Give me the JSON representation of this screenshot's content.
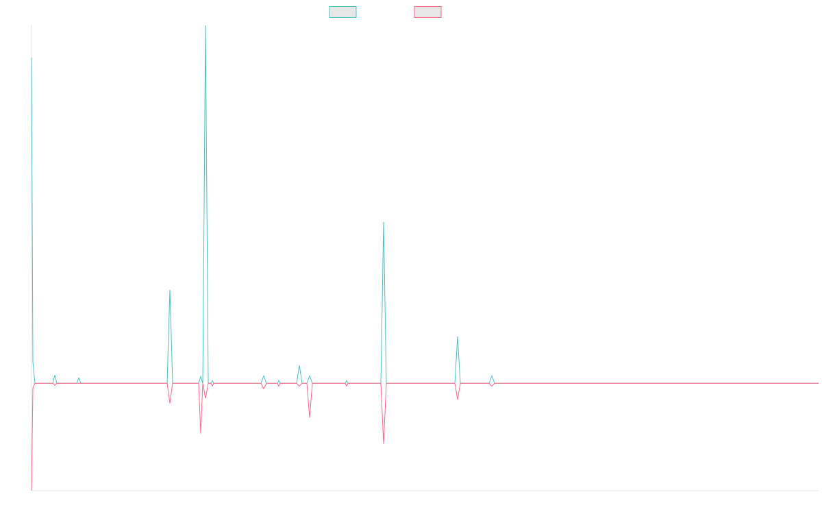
{
  "chart_data": {
    "type": "line",
    "x": [
      0,
      2,
      5,
      31,
      34,
      37,
      66,
      69,
      72,
      198,
      202,
      206,
      244,
      247,
      250,
      254,
      258,
      262,
      264,
      266,
      335,
      339,
      343,
      359,
      361,
      363,
      387,
      391,
      395,
      402,
      406,
      410,
      458,
      460,
      462,
      510,
      514,
      518,
      618,
      622,
      626,
      668,
      672,
      676,
      1149
    ],
    "series": [
      {
        "color": "#4bc0c0",
        "values": [
          91,
          6,
          0,
          0,
          2.3,
          0,
          0,
          1.5,
          0,
          0,
          26.1,
          0,
          0,
          1.9,
          0,
          100,
          0,
          0,
          0.8,
          0,
          0,
          2.1,
          0,
          0,
          0.8,
          0,
          0,
          5,
          0,
          0,
          2.1,
          0,
          0,
          0.8,
          0,
          0,
          45.1,
          0,
          0,
          13.1,
          0,
          0,
          2.1,
          0,
          0
        ]
      },
      {
        "color": "#ff6384",
        "values": [
          -30,
          -1.3,
          0,
          0,
          -0.5,
          0,
          0,
          0,
          0,
          0,
          -5.6,
          0,
          0,
          -14,
          0,
          -4.2,
          0,
          0,
          -0.8,
          0,
          0,
          -1.5,
          0,
          0,
          -0.8,
          0,
          0,
          -0.8,
          0,
          0,
          -9.6,
          0,
          0,
          -0.8,
          0,
          0,
          -16.9,
          0,
          0,
          -4.6,
          0,
          0,
          -0.8,
          0,
          0
        ]
      }
    ],
    "xlim": [
      0,
      1149
    ],
    "ylim": [
      -30,
      100
    ]
  }
}
